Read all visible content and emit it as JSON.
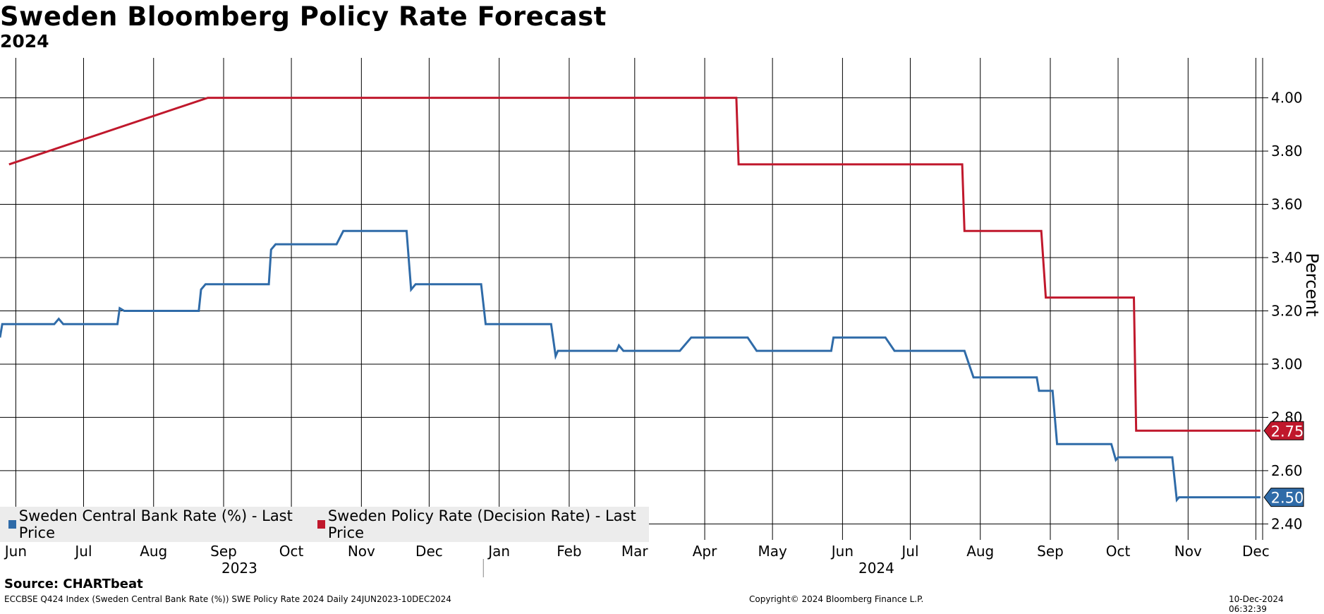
{
  "title": "Sweden Bloomberg Policy Rate Forecast",
  "subtitle": "2024",
  "source": "Source: CHARTbeat",
  "footer_left": "ECCBSE Q424 Index (Sweden Central Bank Rate (%)) SWE Policy Rate 2024  Daily 24JUN2023-10DEC2024",
  "footer_center": "Copyright© 2024 Bloomberg Finance L.P.",
  "footer_right": "10-Dec-2024 06:32:39",
  "chart_data": {
    "type": "line",
    "ylabel": "Percent",
    "ylim": [
      2.34,
      4.15
    ],
    "yticks": [
      "2.40",
      "2.60",
      "2.80",
      "3.00",
      "3.20",
      "3.40",
      "3.60",
      "3.80",
      "4.00"
    ],
    "xlim": [
      "2023-06-01",
      "2024-12-11"
    ],
    "month_ticks": [
      {
        "date": "2023-06-08",
        "label": "Jun"
      },
      {
        "date": "2023-07-08",
        "label": "Jul"
      },
      {
        "date": "2023-08-08",
        "label": "Aug"
      },
      {
        "date": "2023-09-08",
        "label": "Sep"
      },
      {
        "date": "2023-10-08",
        "label": "Oct"
      },
      {
        "date": "2023-11-08",
        "label": "Nov"
      },
      {
        "date": "2023-12-08",
        "label": "Dec"
      },
      {
        "date": "2024-01-08",
        "label": "Jan"
      },
      {
        "date": "2024-02-08",
        "label": "Feb"
      },
      {
        "date": "2024-03-08",
        "label": "Mar"
      },
      {
        "date": "2024-04-08",
        "label": "Apr"
      },
      {
        "date": "2024-05-08",
        "label": "May"
      },
      {
        "date": "2024-06-08",
        "label": "Jun"
      },
      {
        "date": "2024-07-08",
        "label": "Jul"
      },
      {
        "date": "2024-08-08",
        "label": "Aug"
      },
      {
        "date": "2024-09-08",
        "label": "Sep"
      },
      {
        "date": "2024-10-08",
        "label": "Oct"
      },
      {
        "date": "2024-11-08",
        "label": "Nov"
      },
      {
        "date": "2024-12-08",
        "label": "Dec"
      }
    ],
    "year_labels": [
      {
        "date": "2023-09-15",
        "label": "2023"
      },
      {
        "date": "2024-06-23",
        "label": "2024"
      }
    ],
    "year_divider": "2024-01-01",
    "series": [
      {
        "name": "Sweden Central Bank Rate (%) - Last Price",
        "color": "#2f6ba8",
        "last_value_label": "2.50",
        "points": [
          [
            "2023-06-01",
            3.1
          ],
          [
            "2023-06-02",
            3.15
          ],
          [
            "2023-06-25",
            3.15
          ],
          [
            "2023-06-27",
            3.17
          ],
          [
            "2023-06-29",
            3.15
          ],
          [
            "2023-07-23",
            3.15
          ],
          [
            "2023-07-24",
            3.21
          ],
          [
            "2023-07-26",
            3.2
          ],
          [
            "2023-08-28",
            3.2
          ],
          [
            "2023-08-29",
            3.28
          ],
          [
            "2023-08-31",
            3.3
          ],
          [
            "2023-09-28",
            3.3
          ],
          [
            "2023-09-29",
            3.43
          ],
          [
            "2023-10-01",
            3.45
          ],
          [
            "2023-10-28",
            3.45
          ],
          [
            "2023-10-31",
            3.5
          ],
          [
            "2023-11-28",
            3.5
          ],
          [
            "2023-11-30",
            3.28
          ],
          [
            "2023-12-02",
            3.3
          ],
          [
            "2023-12-31",
            3.3
          ],
          [
            "2024-01-02",
            3.15
          ],
          [
            "2024-01-31",
            3.15
          ],
          [
            "2024-02-02",
            3.03
          ],
          [
            "2024-02-03",
            3.05
          ],
          [
            "2024-02-29",
            3.05
          ],
          [
            "2024-03-01",
            3.07
          ],
          [
            "2024-03-03",
            3.05
          ],
          [
            "2024-03-28",
            3.05
          ],
          [
            "2024-04-02",
            3.1
          ],
          [
            "2024-04-27",
            3.1
          ],
          [
            "2024-05-01",
            3.05
          ],
          [
            "2024-06-03",
            3.05
          ],
          [
            "2024-06-04",
            3.1
          ],
          [
            "2024-06-27",
            3.1
          ],
          [
            "2024-07-01",
            3.05
          ],
          [
            "2024-08-01",
            3.05
          ],
          [
            "2024-08-03",
            3.0
          ],
          [
            "2024-08-05",
            2.95
          ],
          [
            "2024-09-02",
            2.95
          ],
          [
            "2024-09-03",
            2.9
          ],
          [
            "2024-09-09",
            2.9
          ],
          [
            "2024-09-11",
            2.7
          ],
          [
            "2024-10-05",
            2.7
          ],
          [
            "2024-10-07",
            2.64
          ],
          [
            "2024-10-08",
            2.65
          ],
          [
            "2024-11-01",
            2.65
          ],
          [
            "2024-11-03",
            2.49
          ],
          [
            "2024-11-04",
            2.5
          ],
          [
            "2024-12-10",
            2.5
          ]
        ]
      },
      {
        "name": "Sweden Policy Rate (Decision Rate) - Last Price",
        "color": "#c0182c",
        "last_value_label": "2.75",
        "points": [
          [
            "2023-06-05",
            3.75
          ],
          [
            "2023-09-01",
            4.0
          ],
          [
            "2024-04-22",
            4.0
          ],
          [
            "2024-04-23",
            3.75
          ],
          [
            "2024-07-31",
            3.75
          ],
          [
            "2024-08-01",
            3.5
          ],
          [
            "2024-09-04",
            3.5
          ],
          [
            "2024-09-06",
            3.25
          ],
          [
            "2024-10-15",
            3.25
          ],
          [
            "2024-10-16",
            2.75
          ],
          [
            "2024-12-10",
            2.75
          ]
        ]
      }
    ]
  },
  "legend": {
    "items": [
      {
        "label": "Sweden Central Bank Rate (%) - Last Price",
        "color": "#2f6ba8"
      },
      {
        "label": "Sweden Policy Rate (Decision Rate) - Last Price",
        "color": "#c0182c"
      }
    ]
  }
}
